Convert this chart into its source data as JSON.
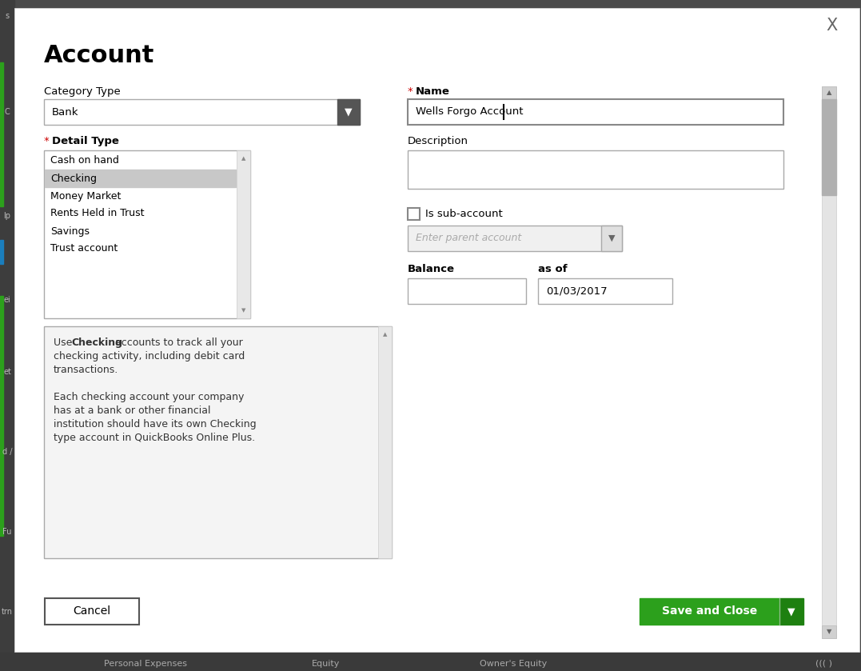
{
  "title": "Account",
  "close_x": "X",
  "outer_bg": "#4a4a4a",
  "dialog_bg": "#ffffff",
  "green_color": "#2ca01c",
  "category_type_label": "Category Type",
  "category_type_value": "Bank",
  "name_label": "Name",
  "name_value": "Wells Forgo Account",
  "detail_type_label": "Detail Type",
  "detail_type_items": [
    "Cash on hand",
    "Checking",
    "Money Market",
    "Rents Held in Trust",
    "Savings",
    "Trust account"
  ],
  "selected_item": "Checking",
  "description_label": "Description",
  "is_sub_account_label": "Is sub-account",
  "enter_parent_label": "Enter parent account",
  "balance_label": "Balance",
  "as_of_label": "as of",
  "as_of_value": "01/03/2017",
  "cancel_button": "Cancel",
  "save_button": "Save and Close",
  "required_color": "#cc0000",
  "field_border": "#c8c8c8",
  "selected_bg": "#c8c8c8",
  "text_color": "#000000",
  "placeholder_color": "#aaaaaa",
  "label_font_size": 9.5,
  "title_font_size": 22,
  "body_font_size": 9,
  "bottom_strip_texts": [
    "Personal Expenses",
    "Equity",
    "Owner's Equity"
  ],
  "bottom_strip_bg": "#3a3a3a",
  "sidebar_bg": "#3d3d3d",
  "sidebar_letters": [
    [
      "s",
      15
    ],
    [
      "C",
      135
    ],
    [
      "lp",
      265
    ],
    [
      "ei",
      370
    ],
    [
      "et",
      460
    ],
    [
      "d /",
      560
    ],
    [
      "Fu",
      660
    ],
    [
      "trn",
      760
    ]
  ],
  "green_bar_color": "#2ca01c",
  "blue_bar_color": "#1a7ebd"
}
